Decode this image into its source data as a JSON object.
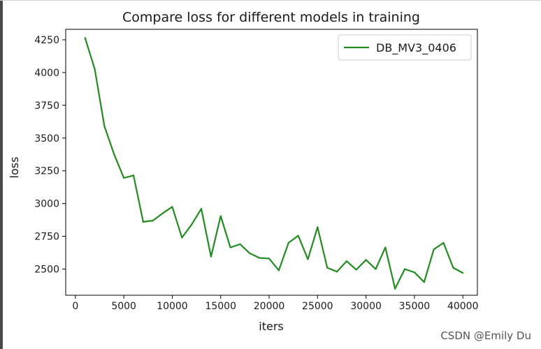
{
  "chart_data": {
    "type": "line",
    "title": "Compare loss for different models in training",
    "xlabel": "iters",
    "ylabel": "loss",
    "xlim": [
      -1000,
      41500
    ],
    "ylim": [
      2300,
      4330
    ],
    "xticks": [
      0,
      5000,
      10000,
      15000,
      20000,
      25000,
      30000,
      35000,
      40000
    ],
    "yticks": [
      2500,
      2750,
      3000,
      3250,
      3500,
      3750,
      4000,
      4250
    ],
    "grid": false,
    "legend_position": "top-right",
    "series": [
      {
        "name": "DB_MV3_0406",
        "color": "#228b22",
        "x": [
          1000,
          2000,
          3000,
          4000,
          5000,
          6000,
          7000,
          8000,
          9000,
          10000,
          11000,
          12000,
          13000,
          14000,
          15000,
          16000,
          17000,
          18000,
          19000,
          20000,
          21000,
          22000,
          23000,
          24000,
          25000,
          26000,
          27000,
          28000,
          29000,
          30000,
          31000,
          32000,
          33000,
          34000,
          35000,
          36000,
          37000,
          38000,
          39000,
          40000
        ],
        "y": [
          4265,
          4025,
          3590,
          3375,
          3195,
          3215,
          2860,
          2870,
          2925,
          2975,
          2740,
          2840,
          2960,
          2595,
          2905,
          2665,
          2690,
          2620,
          2585,
          2580,
          2490,
          2700,
          2755,
          2575,
          2820,
          2510,
          2480,
          2560,
          2495,
          2570,
          2500,
          2665,
          2350,
          2500,
          2475,
          2400,
          2650,
          2700,
          2510,
          2470
        ]
      }
    ]
  },
  "watermark": "CSDN @Emily Du"
}
